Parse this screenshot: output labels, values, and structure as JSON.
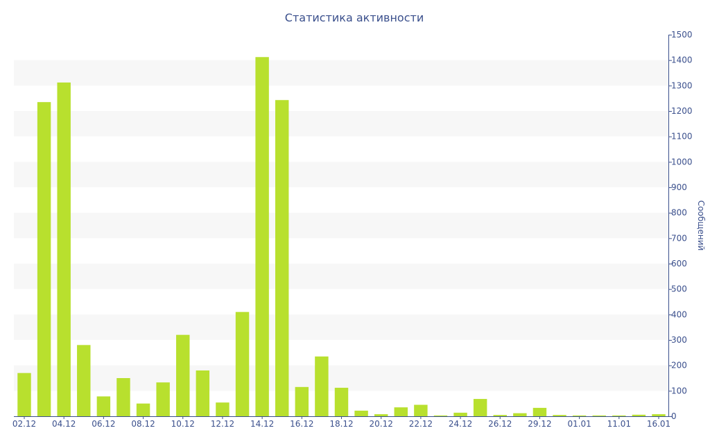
{
  "chart_data": {
    "type": "bar",
    "title": "Статистика активности",
    "xlabel": "",
    "ylabel": "Сообщений",
    "ylim": [
      0,
      1500
    ],
    "y_ticks": [
      0,
      100,
      200,
      300,
      400,
      500,
      600,
      700,
      800,
      900,
      1000,
      1100,
      1200,
      1300,
      1400,
      1500
    ],
    "x_tick_labels": [
      "02.12",
      "04.12",
      "06.12",
      "08.12",
      "10.12",
      "12.12",
      "14.12",
      "16.12",
      "18.12",
      "20.12",
      "22.12",
      "24.12",
      "26.12",
      "29.12",
      "01.01",
      "11.01",
      "16.01"
    ],
    "y_axis_position": "right",
    "grid": "horizontal-bands",
    "bar_color": "#b8e02e",
    "band_color": "#f7f7f7",
    "text_color": "#3a4f8c",
    "values": [
      170,
      1235,
      1312,
      280,
      78,
      150,
      50,
      133,
      320,
      180,
      54,
      410,
      1412,
      1243,
      115,
      235,
      112,
      22,
      8,
      35,
      45,
      3,
      14,
      68,
      5,
      12,
      33,
      5,
      3,
      3,
      3,
      6,
      8
    ]
  }
}
